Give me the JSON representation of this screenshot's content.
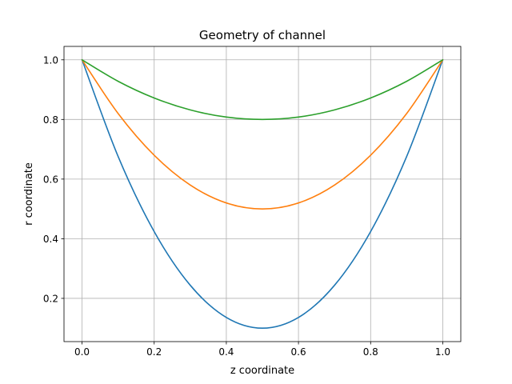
{
  "chart_data": {
    "type": "line",
    "title": "Geometry of channel",
    "xlabel": "z coordinate",
    "ylabel": "r coordinate",
    "xlim": [
      -0.05,
      1.05
    ],
    "ylim": [
      0.055,
      1.045
    ],
    "grid": true,
    "legend": "none",
    "x_ticks": [
      "0.0",
      "0.2",
      "0.4",
      "0.6",
      "0.8",
      "1.0"
    ],
    "y_ticks": [
      "0.2",
      "0.4",
      "0.6",
      "0.8",
      "1.0"
    ],
    "x": [
      0.0,
      0.1,
      0.2,
      0.3,
      0.4,
      0.5,
      0.6,
      0.7,
      0.8,
      0.9,
      1.0
    ],
    "series": [
      {
        "color": "#1f77b4",
        "values": [
          1.0,
          0.676,
          0.424,
          0.244,
          0.136,
          0.1,
          0.136,
          0.244,
          0.424,
          0.676,
          1.0
        ]
      },
      {
        "color": "#ff7f0e",
        "values": [
          1.0,
          0.82,
          0.68,
          0.58,
          0.52,
          0.5,
          0.52,
          0.58,
          0.68,
          0.82,
          1.0
        ]
      },
      {
        "color": "#2ca02c",
        "values": [
          1.0,
          0.928,
          0.872,
          0.832,
          0.808,
          0.8,
          0.808,
          0.832,
          0.872,
          0.928,
          1.0
        ]
      }
    ]
  }
}
